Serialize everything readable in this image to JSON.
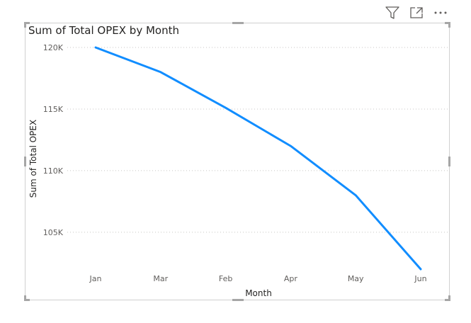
{
  "toolbar": {
    "icons": [
      "filter-icon",
      "focus-mode-icon",
      "more-options-icon"
    ]
  },
  "chart_data": {
    "type": "line",
    "title": "Sum of Total OPEX by Month",
    "xlabel": "Month",
    "ylabel": "Sum of Total OPEX",
    "categories": [
      "Jan",
      "Mar",
      "Feb",
      "Apr",
      "May",
      "Jun"
    ],
    "series": [
      {
        "values": [
          120000,
          118000,
          115100,
          112000,
          108000,
          102000
        ],
        "color": "#118dff"
      }
    ],
    "y_ticks": [
      105000,
      110000,
      115000,
      120000
    ],
    "y_tick_labels": [
      "105K",
      "110K",
      "115K",
      "120K"
    ],
    "ylim": [
      102000,
      120000
    ],
    "grid": "horizontal-dotted",
    "legend": "none"
  }
}
